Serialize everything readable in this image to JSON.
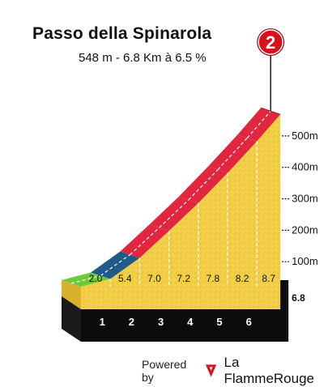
{
  "title": "Passo della Spinarola",
  "subtitle": "548 m - 6.8 Km à 6.5 %",
  "badge": {
    "label": "2",
    "color": "#d8121a"
  },
  "footer": {
    "powered_by": "Powered by",
    "brand": "La FlammeRouge",
    "icon": "flame-rouge-logo-icon"
  },
  "chart_data": {
    "type": "area",
    "total_distance_label": "6.8",
    "total_distance_km": 6.8,
    "y_tick_labels": [
      "100m",
      "200m",
      "300m",
      "400m",
      "500m"
    ],
    "y_ticks": [
      100,
      200,
      300,
      400,
      500
    ],
    "ylim": [
      0,
      548
    ],
    "km_labels": [
      "1",
      "2",
      "3",
      "4",
      "5",
      "6"
    ],
    "km_marks": [
      1,
      2,
      3,
      4,
      5,
      6
    ],
    "segments": [
      {
        "start_km": 0,
        "end_km": 1,
        "gradient_label": "2.0",
        "gradient": 2.0,
        "color": "#6ccb3a"
      },
      {
        "start_km": 1,
        "end_km": 2,
        "gradient_label": "5.4",
        "gradient": 5.4,
        "color": "#1f5a8a"
      },
      {
        "start_km": 2,
        "end_km": 3,
        "gradient_label": "7.0",
        "gradient": 7.0,
        "color": "#e2263f"
      },
      {
        "start_km": 3,
        "end_km": 4,
        "gradient_label": "7.2",
        "gradient": 7.2,
        "color": "#e2263f"
      },
      {
        "start_km": 4,
        "end_km": 5,
        "gradient_label": "7.8",
        "gradient": 7.8,
        "color": "#e2263f"
      },
      {
        "start_km": 5,
        "end_km": 6,
        "gradient_label": "8.2",
        "gradient": 8.2,
        "color": "#e2263f"
      },
      {
        "start_km": 6,
        "end_km": 6.8,
        "gradient_label": "8.7",
        "gradient": 8.7,
        "color": "#e2263f"
      }
    ],
    "fill_color": "#f2cf46",
    "band_color": "#0c0c0c"
  }
}
